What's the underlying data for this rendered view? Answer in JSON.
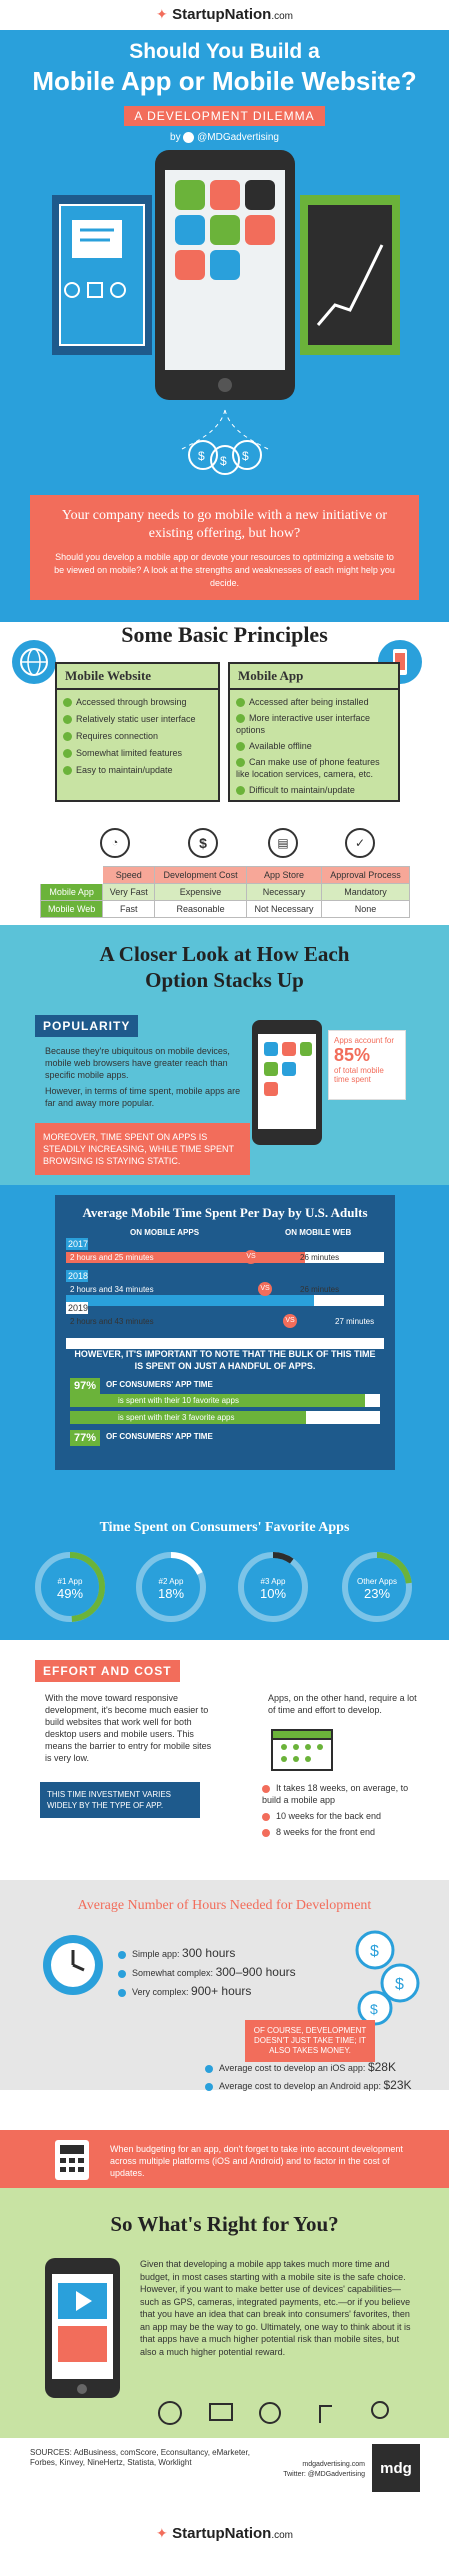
{
  "header": {
    "brand": "StartupNation",
    "brand_suffix": ".com",
    "title_line1": "Should You Build a",
    "title_line2": "Mobile App or Mobile Website?",
    "subtitle": "A DEVELOPMENT DILEMMA",
    "byline": "by",
    "twitter_handle": "@MDGadvertising"
  },
  "intro": {
    "heading": "Your company needs to go mobile with a new initiative or existing offering, but how?",
    "body": "Should you develop a mobile app or devote your resources to optimizing a website to be viewed on mobile? A look at the strengths and weaknesses of each might help you decide."
  },
  "principles": {
    "title": "Some Basic Principles",
    "website": {
      "title": "Mobile Website",
      "items": [
        "Accessed through browsing",
        "Relatively static user interface",
        "Requires connection",
        "Somewhat limited features",
        "Easy to maintain/update"
      ]
    },
    "app": {
      "title": "Mobile App",
      "items": [
        "Accessed after being installed",
        "More interactive user interface options",
        "Available offline",
        "Can make use of phone features like location services, camera, etc.",
        "Difficult to maintain/update"
      ]
    }
  },
  "comparison": {
    "headers": [
      "",
      "Speed",
      "Development Cost",
      "App Store",
      "Approval Process"
    ],
    "rows": [
      [
        "Mobile App",
        "Very Fast",
        "Expensive",
        "Necessary",
        "Mandatory"
      ],
      [
        "Mobile Web",
        "Fast",
        "Reasonable",
        "Not Necessary",
        "None"
      ]
    ],
    "icons": [
      "speedometer-icon",
      "dollar-icon",
      "store-icon",
      "approval-icon"
    ]
  },
  "closer_look": {
    "title_line1": "A Closer Look at How Each",
    "title_line2": "Option Stacks Up"
  },
  "popularity": {
    "label": "POPULARITY",
    "para1": "Because they're ubiquitous on mobile devices, mobile web browsers have greater reach than specific mobile apps.",
    "para2": "However, in terms of time spent, mobile apps are far and away more popular.",
    "callout_pre": "Apps account for",
    "callout_pct": "85%",
    "callout_post": "of total mobile time spent",
    "banner": "MOREOVER, TIME SPENT ON APPS IS STEADILY INCREASING, WHILE TIME SPENT BROWSING IS STAYING STATIC."
  },
  "avg_time": {
    "title": "Average Mobile Time Spent Per Day by U.S. Adults",
    "col_apps": "ON MOBILE APPS",
    "col_web": "ON MOBILE WEB",
    "vs": "VS",
    "rows": [
      {
        "year": "2017",
        "apps": "2 hours and 25 minutes",
        "web": "26 minutes"
      },
      {
        "year": "2018",
        "apps": "2 hours and 34 minutes",
        "web": "26 minutes"
      },
      {
        "year": "2019",
        "apps": "2 hours and 43 minutes",
        "web": "27 minutes"
      }
    ],
    "note": "HOWEVER, IT'S IMPORTANT TO NOTE THAT THE BULK OF THIS TIME IS SPENT ON JUST A HANDFUL OF APPS.",
    "stat1_pct": "97%",
    "stat1_label": "OF CONSUMERS' APP TIME",
    "stat1_detail_a": "is spent with their 10 favorite apps",
    "stat1_detail_b": "is spent with their 3 favorite apps",
    "stat2_pct": "77%",
    "stat2_label": "OF CONSUMERS' APP TIME"
  },
  "favorites": {
    "title": "Time Spent on Consumers' Favorite Apps",
    "items": [
      {
        "label": "#1 App",
        "value": "49%"
      },
      {
        "label": "#2 App",
        "value": "18%"
      },
      {
        "label": "#3 App",
        "value": "10%"
      },
      {
        "label": "Other Apps",
        "value": "23%"
      }
    ],
    "values": [
      49,
      18,
      10,
      23
    ]
  },
  "effort": {
    "label": "EFFORT AND COST",
    "left": "With the move toward responsive development, it's become much easier to build websites that work well for both desktop users and mobile users. This means the barrier to entry for mobile sites is very low.",
    "left_banner": "THIS TIME INVESTMENT VARIES WIDELY BY THE TYPE OF APP.",
    "right": "Apps, on the other hand, require a lot of time and effort to develop.",
    "items": [
      "It takes 18 weeks, on average, to build a mobile app",
      "10 weeks for the back end",
      "8 weeks for the front end"
    ]
  },
  "hours": {
    "title": "Average Number of Hours Needed for Development",
    "items": [
      {
        "label": "Simple app:",
        "value": "300 hours"
      },
      {
        "label": "Somewhat complex:",
        "value": "300–900 hours"
      },
      {
        "label": "Very complex:",
        "value": "900+ hours"
      }
    ],
    "banner": "OF COURSE, DEVELOPMENT DOESN'T JUST TAKE TIME; IT ALSO TAKES MONEY.",
    "ios_label": "Average cost to develop an iOS app:",
    "ios_value": "$28K",
    "android_label": "Average cost to develop an Android app:",
    "android_value": "$23K"
  },
  "budget": {
    "text": "When budgeting for an app, don't forget to take into account development across multiple platforms (iOS and Android) and to factor in the cost of updates."
  },
  "right_for_you": {
    "title": "So What's Right for You?",
    "body": "Given that developing a mobile app takes much more time and budget, in most cases starting with a mobile site is the safe choice. However, if you want to make better use of devices' capabilities—such as GPS, cameras, integrated payments, etc.—or if you believe that you have an idea that can break into consumers' favorites, then an app may be the way to go. Ultimately, one way to think about it is that apps have a much higher potential risk than mobile sites, but also a much higher potential reward."
  },
  "footer": {
    "sources": "SOURCES: AdBusiness, comScore, Econsultancy, eMarketer, Forbes, Kinvey, NineHertz, Statista, Worklight",
    "site": "mdgadvertising.com",
    "twitter": "Twitter: @MDGadvertising",
    "logo": "mdg",
    "brand": "StartupNation",
    "brand_suffix": ".com"
  },
  "colors": {
    "blue": "#2aa0db",
    "coral": "#f26d5b",
    "green": "#6bb33a",
    "dark": "#1e5a8c",
    "teal": "#5bc2d8"
  }
}
